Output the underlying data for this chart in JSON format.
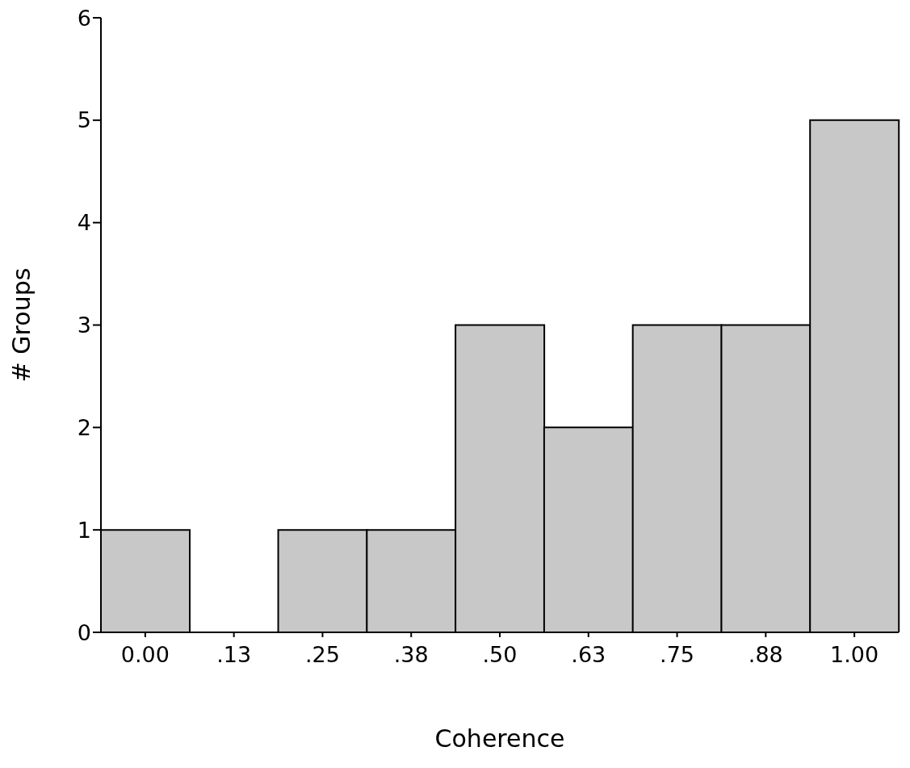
{
  "chart_data": {
    "type": "bar",
    "xlabel": "Coherence",
    "ylabel": "# Groups",
    "categories": [
      "0.00",
      ".13",
      ".25",
      ".38",
      ".50",
      ".63",
      ".75",
      ".88",
      "1.00"
    ],
    "values": [
      1,
      0,
      1,
      1,
      3,
      2,
      3,
      3,
      5
    ],
    "color": "#c8c8c8",
    "ylim": [
      0,
      6
    ],
    "yticks": [
      0,
      1,
      2,
      3,
      4,
      5,
      6
    ],
    "grid": false
  }
}
